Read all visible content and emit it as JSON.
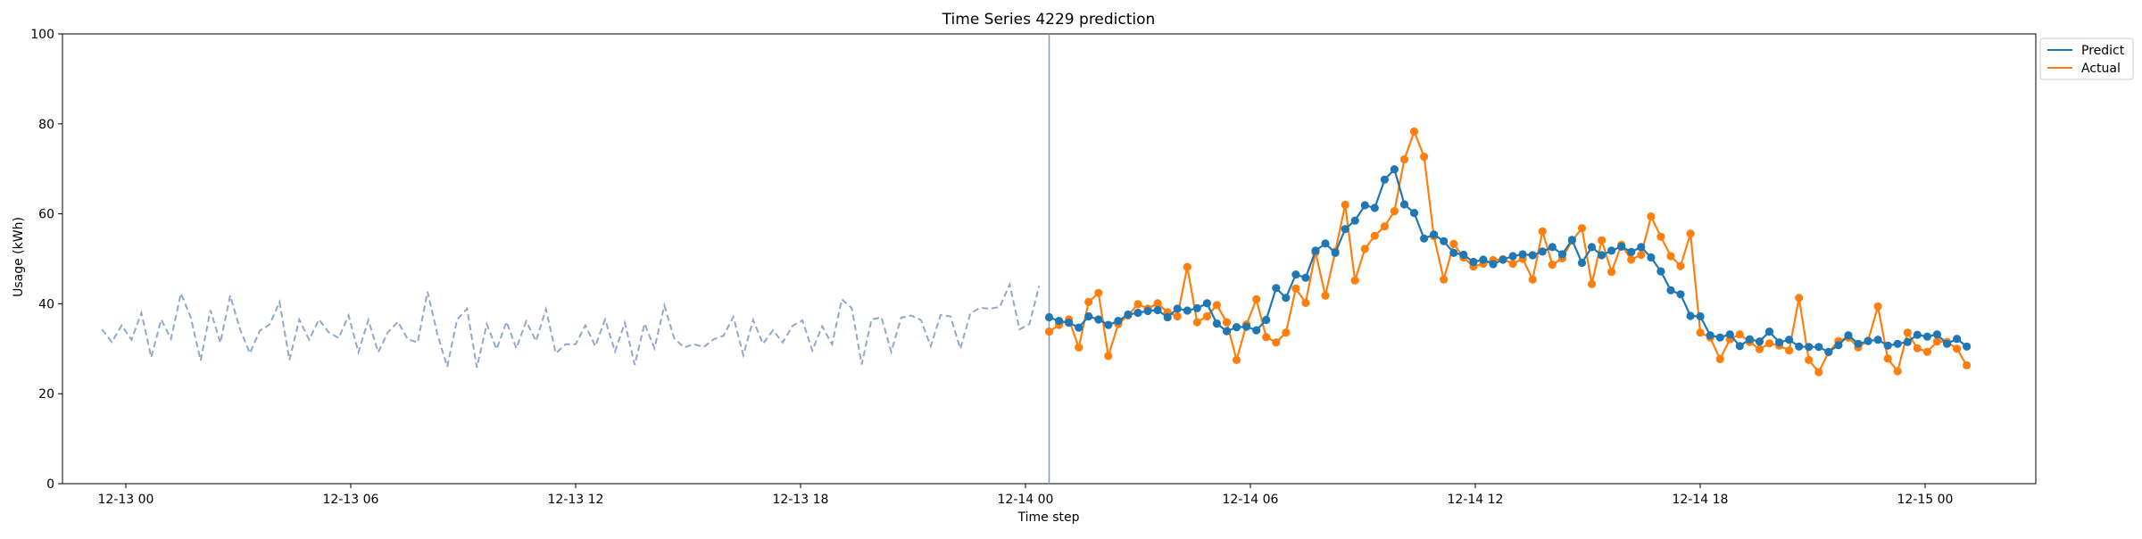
{
  "chart_data": {
    "type": "line",
    "title": "Time Series 4229 prediction",
    "xlabel": "Time step",
    "ylabel": "Usage (kWh)",
    "ylim": [
      0,
      100
    ],
    "xlim": [
      "12-12 23:00",
      "12-15 01:00"
    ],
    "y_ticks": [
      "0",
      "20",
      "40",
      "60",
      "80",
      "100"
    ],
    "x_ticks": [
      "12-13 00",
      "12-13 06",
      "12-13 12",
      "12-13 18",
      "12-14 00",
      "12-14 06",
      "12-14 12",
      "12-14 18",
      "12-15 00"
    ],
    "x_interval_minutes": 15,
    "grid": false,
    "legend_position": "top-right",
    "vertical_line_at": "12-14 00:00",
    "history_start": "12-13 00:00",
    "history_values": [
      34.3,
      31.5,
      35.2,
      32.0,
      38.0,
      28.1,
      36.5,
      32.2,
      42.3,
      37.0,
      27.4,
      38.6,
      31.3,
      41.8,
      34.3,
      29.0,
      34.0,
      35.4,
      40.4,
      27.5,
      36.5,
      32.0,
      36.5,
      33.6,
      32.4,
      37.4,
      29.2,
      36.4,
      29.2,
      33.7,
      36.0,
      32.1,
      31.4,
      42.7,
      33.2,
      26.0,
      36.5,
      38.9,
      25.8,
      35.5,
      29.9,
      36.0,
      30.1,
      36.1,
      31.7,
      38.8,
      29.0,
      31.0,
      31.0,
      35.2,
      30.6,
      36.5,
      29.4,
      35.8,
      26.4,
      35.6,
      30.1,
      39.6,
      32.3,
      30.3,
      31.0,
      30.4,
      32.1,
      32.9,
      37.1,
      28.6,
      36.4,
      31.1,
      34.1,
      31.4,
      35.1,
      36.3,
      29.6,
      35.0,
      31.0,
      41.0,
      39.0,
      26.5,
      36.5,
      37.0,
      29.3,
      36.9,
      37.4,
      36.4,
      30.6,
      37.5,
      37.2,
      30.0,
      37.8,
      39.1,
      38.9,
      39.3,
      44.3,
      34.3,
      35.5,
      44.0
    ],
    "series": [
      {
        "name": "Predict",
        "color": "#1f77b4",
        "start": "12-14 00:00",
        "values": [
          37.0,
          36.2,
          35.8,
          34.7,
          37.2,
          36.5,
          35.3,
          36.2,
          37.6,
          38.0,
          38.4,
          38.6,
          37.0,
          38.9,
          38.5,
          39.0,
          40.1,
          35.6,
          33.9,
          34.8,
          34.9,
          34.1,
          36.4,
          43.5,
          41.3,
          46.5,
          45.8,
          51.8,
          53.4,
          51.3,
          56.6,
          58.5,
          61.9,
          61.3,
          67.6,
          69.9,
          62.1,
          60.2,
          54.5,
          55.4,
          53.9,
          51.3,
          50.9,
          49.3,
          49.8,
          48.8,
          49.8,
          50.6,
          51.0,
          50.8,
          51.6,
          52.6,
          51.0,
          54.2,
          49.1,
          52.6,
          50.8,
          51.8,
          52.7,
          51.5,
          52.6,
          50.3,
          47.2,
          43.0,
          42.1,
          37.3,
          37.2,
          33.0,
          32.5,
          33.2,
          30.6,
          32.1,
          31.6,
          33.8,
          31.4,
          32.0,
          30.5,
          30.4,
          30.4,
          29.3,
          30.8,
          33.0,
          31.1,
          31.7,
          32.0,
          30.7,
          31.1,
          31.5,
          33.1,
          32.7,
          33.2,
          31.1,
          32.2,
          30.5
        ]
      },
      {
        "name": "Actual",
        "color": "#ff7f0e",
        "start": "12-14 00:00",
        "values": [
          33.8,
          35.3,
          36.5,
          30.3,
          40.4,
          42.4,
          28.4,
          35.5,
          37.4,
          39.9,
          38.9,
          40.1,
          38.1,
          37.2,
          48.2,
          35.9,
          37.2,
          39.7,
          35.9,
          27.5,
          35.4,
          41.0,
          32.6,
          31.4,
          33.6,
          43.4,
          40.2,
          51.4,
          41.8,
          51.6,
          62.0,
          45.2,
          52.2,
          55.1,
          57.2,
          60.6,
          72.1,
          78.3,
          72.7,
          55.0,
          45.4,
          53.3,
          50.3,
          48.3,
          48.9,
          49.7,
          49.9,
          48.9,
          50.0,
          45.4,
          56.1,
          48.7,
          50.1,
          54.0,
          56.8,
          44.4,
          54.1,
          47.1,
          53.1,
          49.8,
          50.9,
          59.4,
          54.9,
          50.6,
          48.4,
          55.6,
          33.6,
          32.5,
          27.7,
          32.1,
          33.2,
          31.5,
          29.9,
          31.2,
          30.7,
          29.6,
          41.3,
          27.5,
          24.8,
          29.2,
          31.7,
          32.5,
          30.3,
          31.8,
          39.4,
          27.8,
          25.0,
          33.6,
          30.1,
          29.3,
          31.6,
          31.5,
          30.0,
          26.3
        ]
      }
    ]
  }
}
